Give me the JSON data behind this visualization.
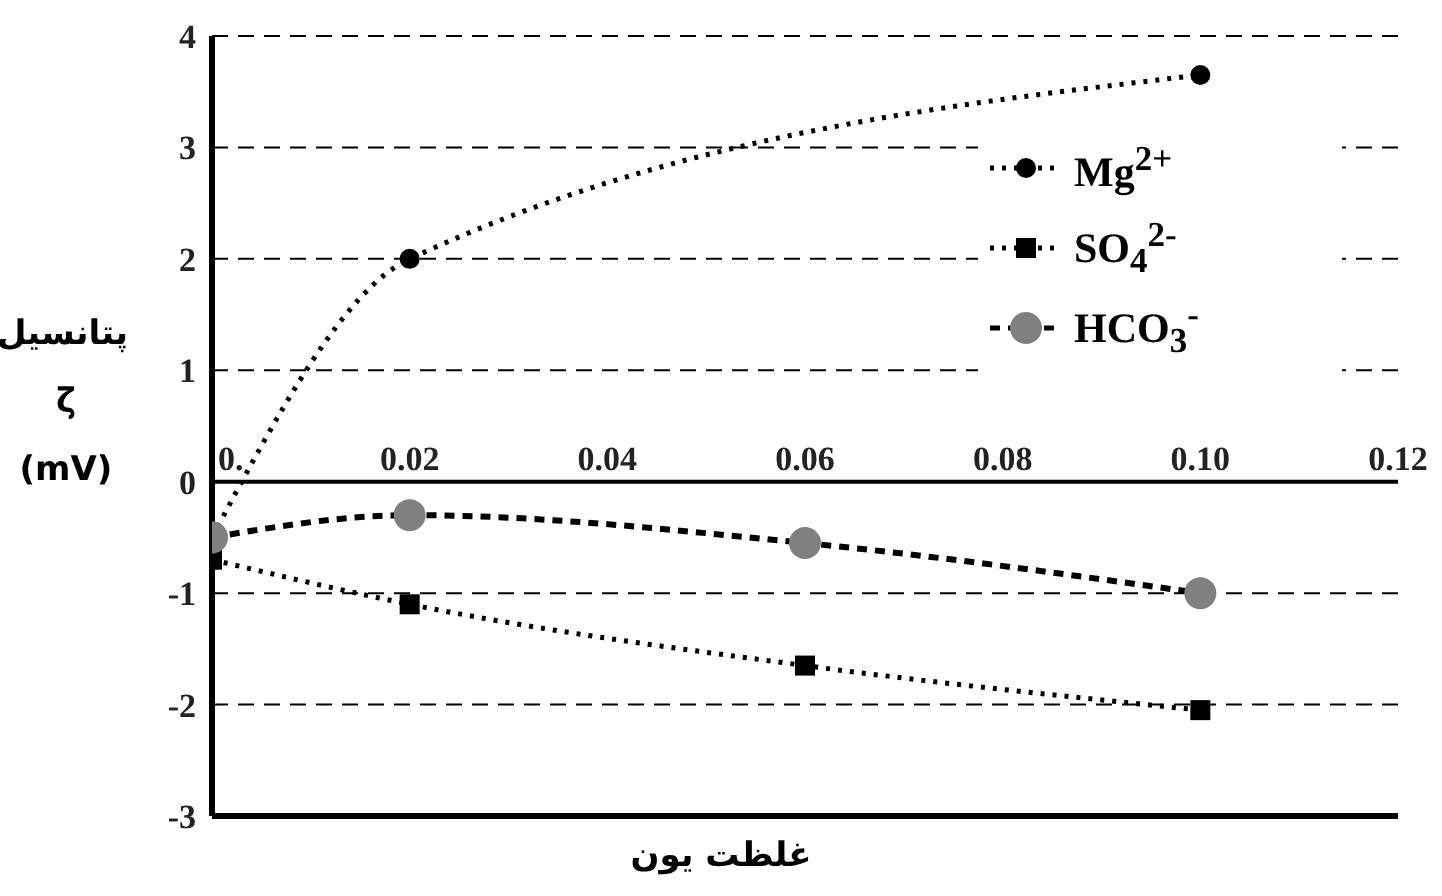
{
  "chart_data": {
    "type": "line",
    "xlabel": "غلظت یون",
    "ylabel": "پتانسیل ζ (mV)",
    "xlim": [
      0,
      0.12
    ],
    "xticks": [
      {
        "value": 0,
        "label": "0."
      },
      0.02,
      0.04,
      0.06,
      0.08,
      {
        "value": 0.1,
        "label": "0.10"
      },
      0.12
    ],
    "ylim": [
      -3,
      4
    ],
    "yticks": [
      -3,
      -2,
      -1,
      0,
      1,
      2,
      3,
      4
    ],
    "grid": "y",
    "legend": "top right",
    "series": [
      {
        "name": "Mg$^{2+}$",
        "color": "#000000",
        "marker": "circle",
        "line_style": "dotted",
        "x": [
          0,
          0.02,
          0.1
        ],
        "values": [
          -0.5,
          2,
          3.65
        ]
      },
      {
        "name": "SO$_{4}$$^{2-}$",
        "color": "#000000",
        "marker": "square",
        "line_style": "dotted",
        "x": [
          0,
          0.02,
          0.06,
          0.1
        ],
        "values": [
          -0.7,
          -1.1,
          -1.65,
          -2.05
        ]
      },
      {
        "name": "HCO$_{3}$$^{-}$",
        "color": "#808080",
        "marker": "circle",
        "line_style": "dashed",
        "x": [
          0,
          0.02,
          0.06,
          0.1
        ],
        "values": [
          -0.5,
          -0.3,
          -0.55,
          -1.0
        ]
      }
    ]
  }
}
